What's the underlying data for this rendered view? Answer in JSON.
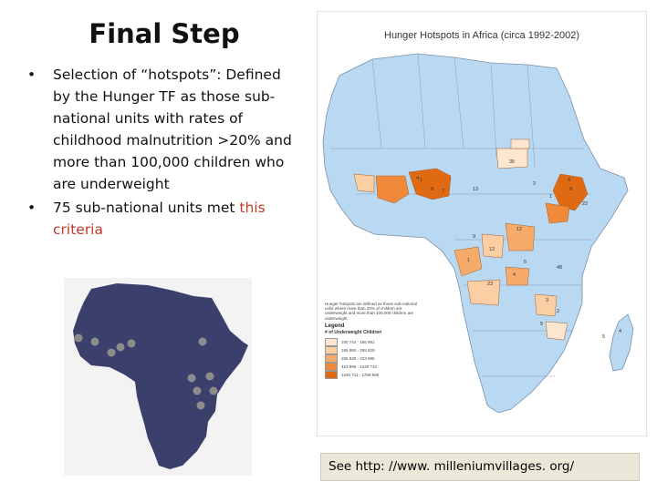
{
  "slide": {
    "title": "Final Step",
    "bullets": [
      {
        "marker": "•",
        "text": "Selection of “hotspots”: Defined by the Hunger TF as those sub-national units with rates of childhood malnutrition >20% and more than  100,000 children who are underweight"
      },
      {
        "marker": "•",
        "text_plain": "75 sub-national units met ",
        "text_red": "this criteria"
      }
    ]
  },
  "hotspot_map": {
    "title": "Hunger Hotspots in Africa (circa 1992-2002)",
    "note": "Hunger hotspots are defined as those sub-national units where more than 20% of children are underweight and more than 100,000 children are underweight.",
    "legend_title": "Legend",
    "legend_subtitle": "# of Underweight Children",
    "legend": [
      {
        "label": "100 744 - 165 991",
        "color": "#fde6cf"
      },
      {
        "label": "165 992 - 255 929",
        "color": "#fbcfa3"
      },
      {
        "label": "255 930 - 423 995",
        "color": "#f6ab6b"
      },
      {
        "label": "423 996 - 1240 710",
        "color": "#f08a3a"
      },
      {
        "label": "1240 711 - 1709 590",
        "color": "#e06a12"
      }
    ],
    "colors": {
      "base_land": "#b9d8f1",
      "border": "#7a8fa8",
      "ocean": "#ffffff"
    },
    "region_numbers": [
      "35",
      "1",
      "13",
      "9",
      "7",
      "4",
      "3",
      "4",
      "9",
      "1",
      "12",
      "22",
      "9",
      "12",
      "1",
      "6",
      "4",
      "48",
      "23",
      "3",
      "2",
      "5",
      "5",
      "4"
    ]
  },
  "village_map": {
    "colors": {
      "land": "#3b3f6b",
      "dot": "#8c8c8c",
      "background": "#f3f3f3"
    },
    "village_count": 11
  },
  "link_box": {
    "text": "See http: //www. milleniumvillages. org/"
  }
}
